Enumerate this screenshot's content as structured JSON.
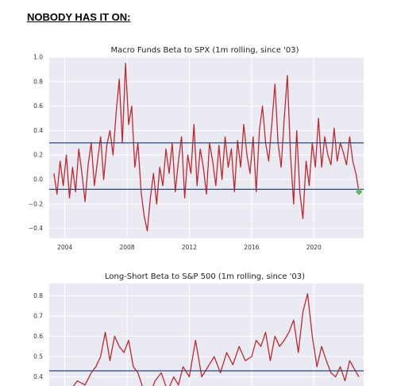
{
  "headline": "NOBODY HAS IT ON:",
  "colors": {
    "series": "#c0282d",
    "refline": "#2f4b7c",
    "marker": "#5cb85c",
    "plot_bg": "#eaeaf2",
    "grid": "#ffffff"
  },
  "chart_data": [
    {
      "type": "line",
      "title": "Macro Funds Beta to SPX (1m rolling, since '03)",
      "xlabel": "",
      "ylabel": "",
      "xlim": [
        2003.0,
        2023.2
      ],
      "ylim": [
        -0.48,
        1.0
      ],
      "x_ticks": [
        2004,
        2008,
        2012,
        2016,
        2020
      ],
      "x_tick_labels": [
        "2004",
        "2008",
        "2012",
        "2016",
        "2020"
      ],
      "y_ticks": [
        1.0,
        0.8,
        0.6,
        0.4,
        0.2,
        0.0,
        -0.2,
        -0.4
      ],
      "y_tick_labels": [
        "1.0",
        "0.8",
        "0.6",
        "0.4",
        "0.2",
        "0.0",
        "−0.2",
        "−0.4"
      ],
      "hlines": [
        0.3,
        -0.08
      ],
      "series": [
        {
          "x": [
            2003.3,
            2003.5,
            2003.7,
            2003.9,
            2004.1,
            2004.3,
            2004.5,
            2004.7,
            2004.9,
            2005.1,
            2005.3,
            2005.5,
            2005.7,
            2005.9,
            2006.1,
            2006.3,
            2006.5,
            2006.7,
            2006.9,
            2007.1,
            2007.3,
            2007.5,
            2007.7,
            2007.9,
            2008.1,
            2008.3,
            2008.5,
            2008.7,
            2008.9,
            2009.1,
            2009.3,
            2009.5,
            2009.7,
            2009.9,
            2010.1,
            2010.3,
            2010.5,
            2010.7,
            2010.9,
            2011.1,
            2011.3,
            2011.5,
            2011.7,
            2011.9,
            2012.1,
            2012.3,
            2012.5,
            2012.7,
            2012.9,
            2013.1,
            2013.3,
            2013.5,
            2013.7,
            2013.9,
            2014.1,
            2014.3,
            2014.5,
            2014.7,
            2014.9,
            2015.1,
            2015.3,
            2015.5,
            2015.7,
            2015.9,
            2016.1,
            2016.3,
            2016.5,
            2016.7,
            2016.9,
            2017.1,
            2017.3,
            2017.5,
            2017.7,
            2017.9,
            2018.1,
            2018.3,
            2018.5,
            2018.7,
            2018.9,
            2019.1,
            2019.3,
            2019.5,
            2019.7,
            2019.9,
            2020.1,
            2020.3,
            2020.5,
            2020.7,
            2020.9,
            2021.1,
            2021.3,
            2021.5,
            2021.7,
            2021.9,
            2022.1,
            2022.3,
            2022.5,
            2022.7,
            2022.9
          ],
          "y": [
            0.05,
            -0.12,
            0.15,
            -0.05,
            0.2,
            -0.15,
            0.1,
            -0.1,
            0.25,
            0.05,
            -0.18,
            0.12,
            0.3,
            -0.05,
            0.15,
            0.35,
            0.0,
            0.28,
            0.4,
            0.2,
            0.55,
            0.82,
            0.3,
            0.95,
            0.45,
            0.6,
            0.1,
            0.3,
            -0.1,
            -0.3,
            -0.42,
            -0.15,
            0.05,
            -0.2,
            0.1,
            -0.05,
            0.25,
            0.05,
            0.3,
            -0.1,
            0.15,
            0.35,
            -0.15,
            0.2,
            0.05,
            0.45,
            -0.05,
            0.25,
            0.1,
            -0.12,
            0.3,
            0.15,
            -0.05,
            0.28,
            0.0,
            0.35,
            0.1,
            0.25,
            -0.1,
            0.32,
            0.1,
            0.45,
            0.2,
            0.05,
            0.35,
            -0.1,
            0.4,
            0.6,
            0.3,
            0.15,
            0.45,
            0.78,
            0.3,
            0.1,
            0.5,
            0.85,
            0.2,
            -0.2,
            0.4,
            -0.1,
            -0.32,
            0.15,
            -0.05,
            0.3,
            0.1,
            0.5,
            0.1,
            0.35,
            0.2,
            0.12,
            0.42,
            0.15,
            0.3,
            0.22,
            0.12,
            0.35,
            0.15,
            0.05,
            -0.1
          ]
        }
      ],
      "last_point": {
        "x": 2022.9,
        "y": -0.1
      }
    },
    {
      "type": "line",
      "title": "Long-Short Beta to S&P 500 (1m rolling, since '03)",
      "xlabel": "",
      "ylabel": "",
      "xlim": [
        2003.0,
        2023.2
      ],
      "y_ticks": [
        0.8,
        0.7,
        0.6,
        0.5,
        0.4
      ],
      "y_tick_labels": [
        "0.8",
        "0.7",
        "0.6",
        "0.5",
        "0.4"
      ],
      "hlines": [
        0.43
      ],
      "series": [
        {
          "x": [
            2003.3,
            2003.8,
            2004.3,
            2004.8,
            2005.3,
            2005.7,
            2006.0,
            2006.3,
            2006.6,
            2006.9,
            2007.2,
            2007.5,
            2007.8,
            2008.1,
            2008.4,
            2008.7,
            2009.0,
            2009.4,
            2009.8,
            2010.2,
            2010.6,
            2011.0,
            2011.3,
            2011.6,
            2012.0,
            2012.4,
            2012.8,
            2013.2,
            2013.6,
            2014.0,
            2014.4,
            2014.8,
            2015.2,
            2015.6,
            2016.0,
            2016.3,
            2016.6,
            2016.9,
            2017.2,
            2017.5,
            2017.8,
            2018.1,
            2018.4,
            2018.7,
            2019.0,
            2019.3,
            2019.6,
            2019.9,
            2020.2,
            2020.5,
            2020.8,
            2021.1,
            2021.4,
            2021.7,
            2022.0,
            2022.3,
            2022.6,
            2022.9
          ],
          "y": [
            0.3,
            0.35,
            0.33,
            0.38,
            0.36,
            0.42,
            0.45,
            0.5,
            0.62,
            0.48,
            0.6,
            0.55,
            0.52,
            0.58,
            0.45,
            0.42,
            0.35,
            0.3,
            0.38,
            0.42,
            0.33,
            0.4,
            0.36,
            0.45,
            0.4,
            0.58,
            0.4,
            0.45,
            0.5,
            0.42,
            0.52,
            0.46,
            0.55,
            0.48,
            0.5,
            0.58,
            0.55,
            0.62,
            0.48,
            0.6,
            0.55,
            0.58,
            0.62,
            0.68,
            0.52,
            0.72,
            0.81,
            0.6,
            0.45,
            0.55,
            0.48,
            0.42,
            0.4,
            0.45,
            0.38,
            0.48,
            0.44,
            0.4
          ]
        }
      ]
    }
  ]
}
